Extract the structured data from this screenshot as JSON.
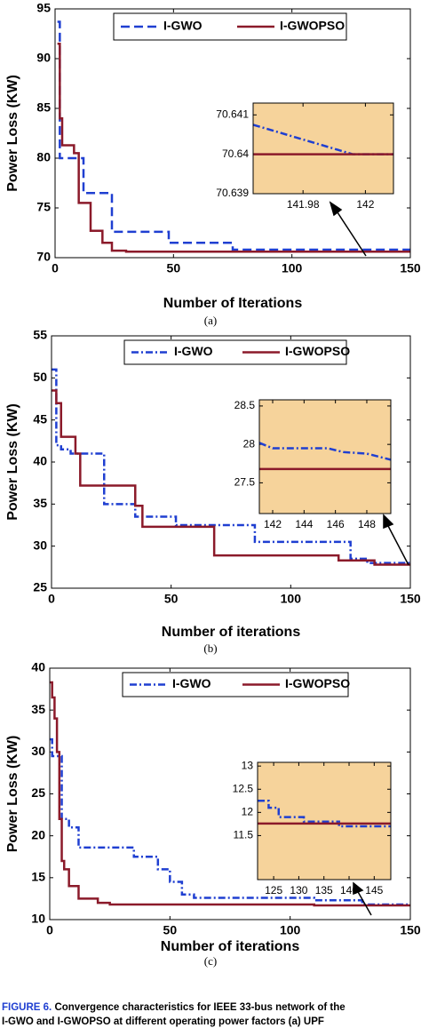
{
  "chart_data": [
    {
      "type": "line",
      "step": true,
      "xlabel": "Number of Iterations",
      "ylabel": "Power Loss (KW)",
      "label": "(a)",
      "legend": "top",
      "xlim": [
        0,
        150
      ],
      "ylim": [
        70,
        95
      ],
      "xticks": [
        0,
        50,
        100,
        150
      ],
      "yticks": [
        70,
        75,
        80,
        85,
        90,
        95
      ],
      "x": [
        1,
        2,
        3,
        8,
        10,
        12,
        15,
        20,
        24,
        30,
        48,
        75,
        150
      ],
      "series": [
        {
          "name": "I-GWO",
          "color": "#1f3fd1",
          "values": [
            93.7,
            80,
            80,
            80,
            80,
            76.5,
            76.5,
            76.5,
            72.6,
            72.6,
            71.5,
            70.8,
            70.8
          ]
        },
        {
          "name": "I-GWOPSO",
          "color": "#8b1a2a",
          "values": [
            91.5,
            84,
            81.3,
            80.5,
            75.5,
            75.5,
            72.7,
            71.5,
            70.7,
            70.6,
            70.6,
            70.6,
            70.6
          ]
        }
      ]
    },
    {
      "type": "line",
      "step": false,
      "xlim": [
        141.964,
        142.009
      ],
      "ylim": [
        70.639,
        70.6413
      ],
      "xticks": [
        141.98,
        142
      ],
      "yticks": [
        70.639,
        70.64,
        70.641
      ],
      "x": [
        141.964,
        141.996,
        142.009
      ],
      "series": [
        {
          "color": "#1f3fd1",
          "values": [
            70.64075,
            70.64,
            70.64
          ]
        },
        {
          "color": "#8b1a2a",
          "values": [
            70.64,
            70.64,
            70.64
          ]
        }
      ]
    },
    {
      "type": "line",
      "step": true,
      "xlabel": "Number of iterations",
      "ylabel": "Power Loss (KW)",
      "label": "(b)",
      "legend": "top",
      "xlim": [
        0,
        150
      ],
      "ylim": [
        25,
        55
      ],
      "xticks": [
        0,
        50,
        100,
        150
      ],
      "yticks": [
        25,
        30,
        35,
        40,
        45,
        50,
        55
      ],
      "x": [
        0,
        2,
        4,
        8,
        10,
        12,
        22,
        35,
        38,
        52,
        68,
        85,
        120,
        125,
        132,
        135,
        150
      ],
      "series": [
        {
          "name": "I-GWO",
          "color": "#1f3fd1",
          "values": [
            51,
            42,
            41.5,
            41,
            41,
            41,
            35,
            33.5,
            33.5,
            32.5,
            32.5,
            30.5,
            30.5,
            28.5,
            28,
            28,
            28
          ]
        },
        {
          "name": "I-GWOPSO",
          "color": "#8b1a2a",
          "values": [
            48.5,
            47,
            43,
            43,
            41,
            37.2,
            37.2,
            34.8,
            32.3,
            32.3,
            28.9,
            28.9,
            28.3,
            28.3,
            28.3,
            27.8,
            27.8
          ]
        }
      ]
    },
    {
      "type": "line",
      "step": false,
      "xlim": [
        141.15,
        149.53
      ],
      "ylim": [
        27.1,
        28.58
      ],
      "xticks": [
        142,
        144,
        146,
        148
      ],
      "yticks": [
        27.5,
        28,
        28.5
      ],
      "x": [
        141.15,
        142,
        145.5,
        146.5,
        148,
        149.53
      ],
      "series": [
        {
          "color": "#1f3fd1",
          "values": [
            28.02,
            27.95,
            27.95,
            27.9,
            27.88,
            27.8
          ]
        },
        {
          "color": "#8b1a2a",
          "values": [
            27.68,
            27.68,
            27.68,
            27.68,
            27.68,
            27.68
          ]
        }
      ]
    },
    {
      "type": "line",
      "step": true,
      "xlabel": "Number of iterations",
      "ylabel": "Power Loss (KW)",
      "label": "(c)",
      "legend": "top",
      "xlim": [
        0,
        150
      ],
      "ylim": [
        10,
        40
      ],
      "xticks": [
        0,
        50,
        100,
        150
      ],
      "yticks": [
        10,
        15,
        20,
        25,
        30,
        35,
        40
      ],
      "x": [
        0,
        1,
        2,
        3,
        4,
        5,
        6,
        8,
        12,
        20,
        25,
        35,
        45,
        50,
        55,
        60,
        110,
        130,
        150
      ],
      "series": [
        {
          "name": "I-GWO",
          "color": "#1f3fd1",
          "values": [
            31.5,
            29.5,
            29.5,
            29.5,
            29.5,
            22,
            22,
            21,
            18.6,
            18.6,
            18.6,
            17.5,
            16,
            14.5,
            13,
            12.6,
            12.3,
            11.8,
            11.8
          ]
        },
        {
          "name": "I-GWOPSO",
          "color": "#8b1a2a",
          "values": [
            38.3,
            36.5,
            34,
            30,
            22,
            17,
            16,
            14,
            12.5,
            12,
            11.8,
            11.8,
            11.8,
            11.8,
            11.8,
            11.8,
            11.7,
            11.7,
            11.7
          ]
        }
      ]
    },
    {
      "type": "line",
      "step": true,
      "xlim": [
        121.8,
        148.3
      ],
      "ylim": [
        10.55,
        13.08
      ],
      "xticks": [
        125,
        130,
        135,
        140,
        145
      ],
      "yticks": [
        11.5,
        12,
        12.5,
        13
      ],
      "x": [
        121.8,
        124,
        126,
        131,
        138,
        148.3
      ],
      "series": [
        {
          "color": "#1f3fd1",
          "values": [
            12.25,
            12.1,
            11.9,
            11.8,
            11.7,
            11.7
          ]
        },
        {
          "color": "#8b1a2a",
          "values": [
            11.76,
            11.76,
            11.76,
            11.76,
            11.76,
            11.76
          ]
        }
      ]
    }
  ],
  "caption": {
    "label": "FIGURE 6.",
    "line1": "Convergence characteristics for IEEE 33-bus network of the",
    "line2": "I-GWO and I-GWOPSO at different operating power factors (a) UPF"
  }
}
